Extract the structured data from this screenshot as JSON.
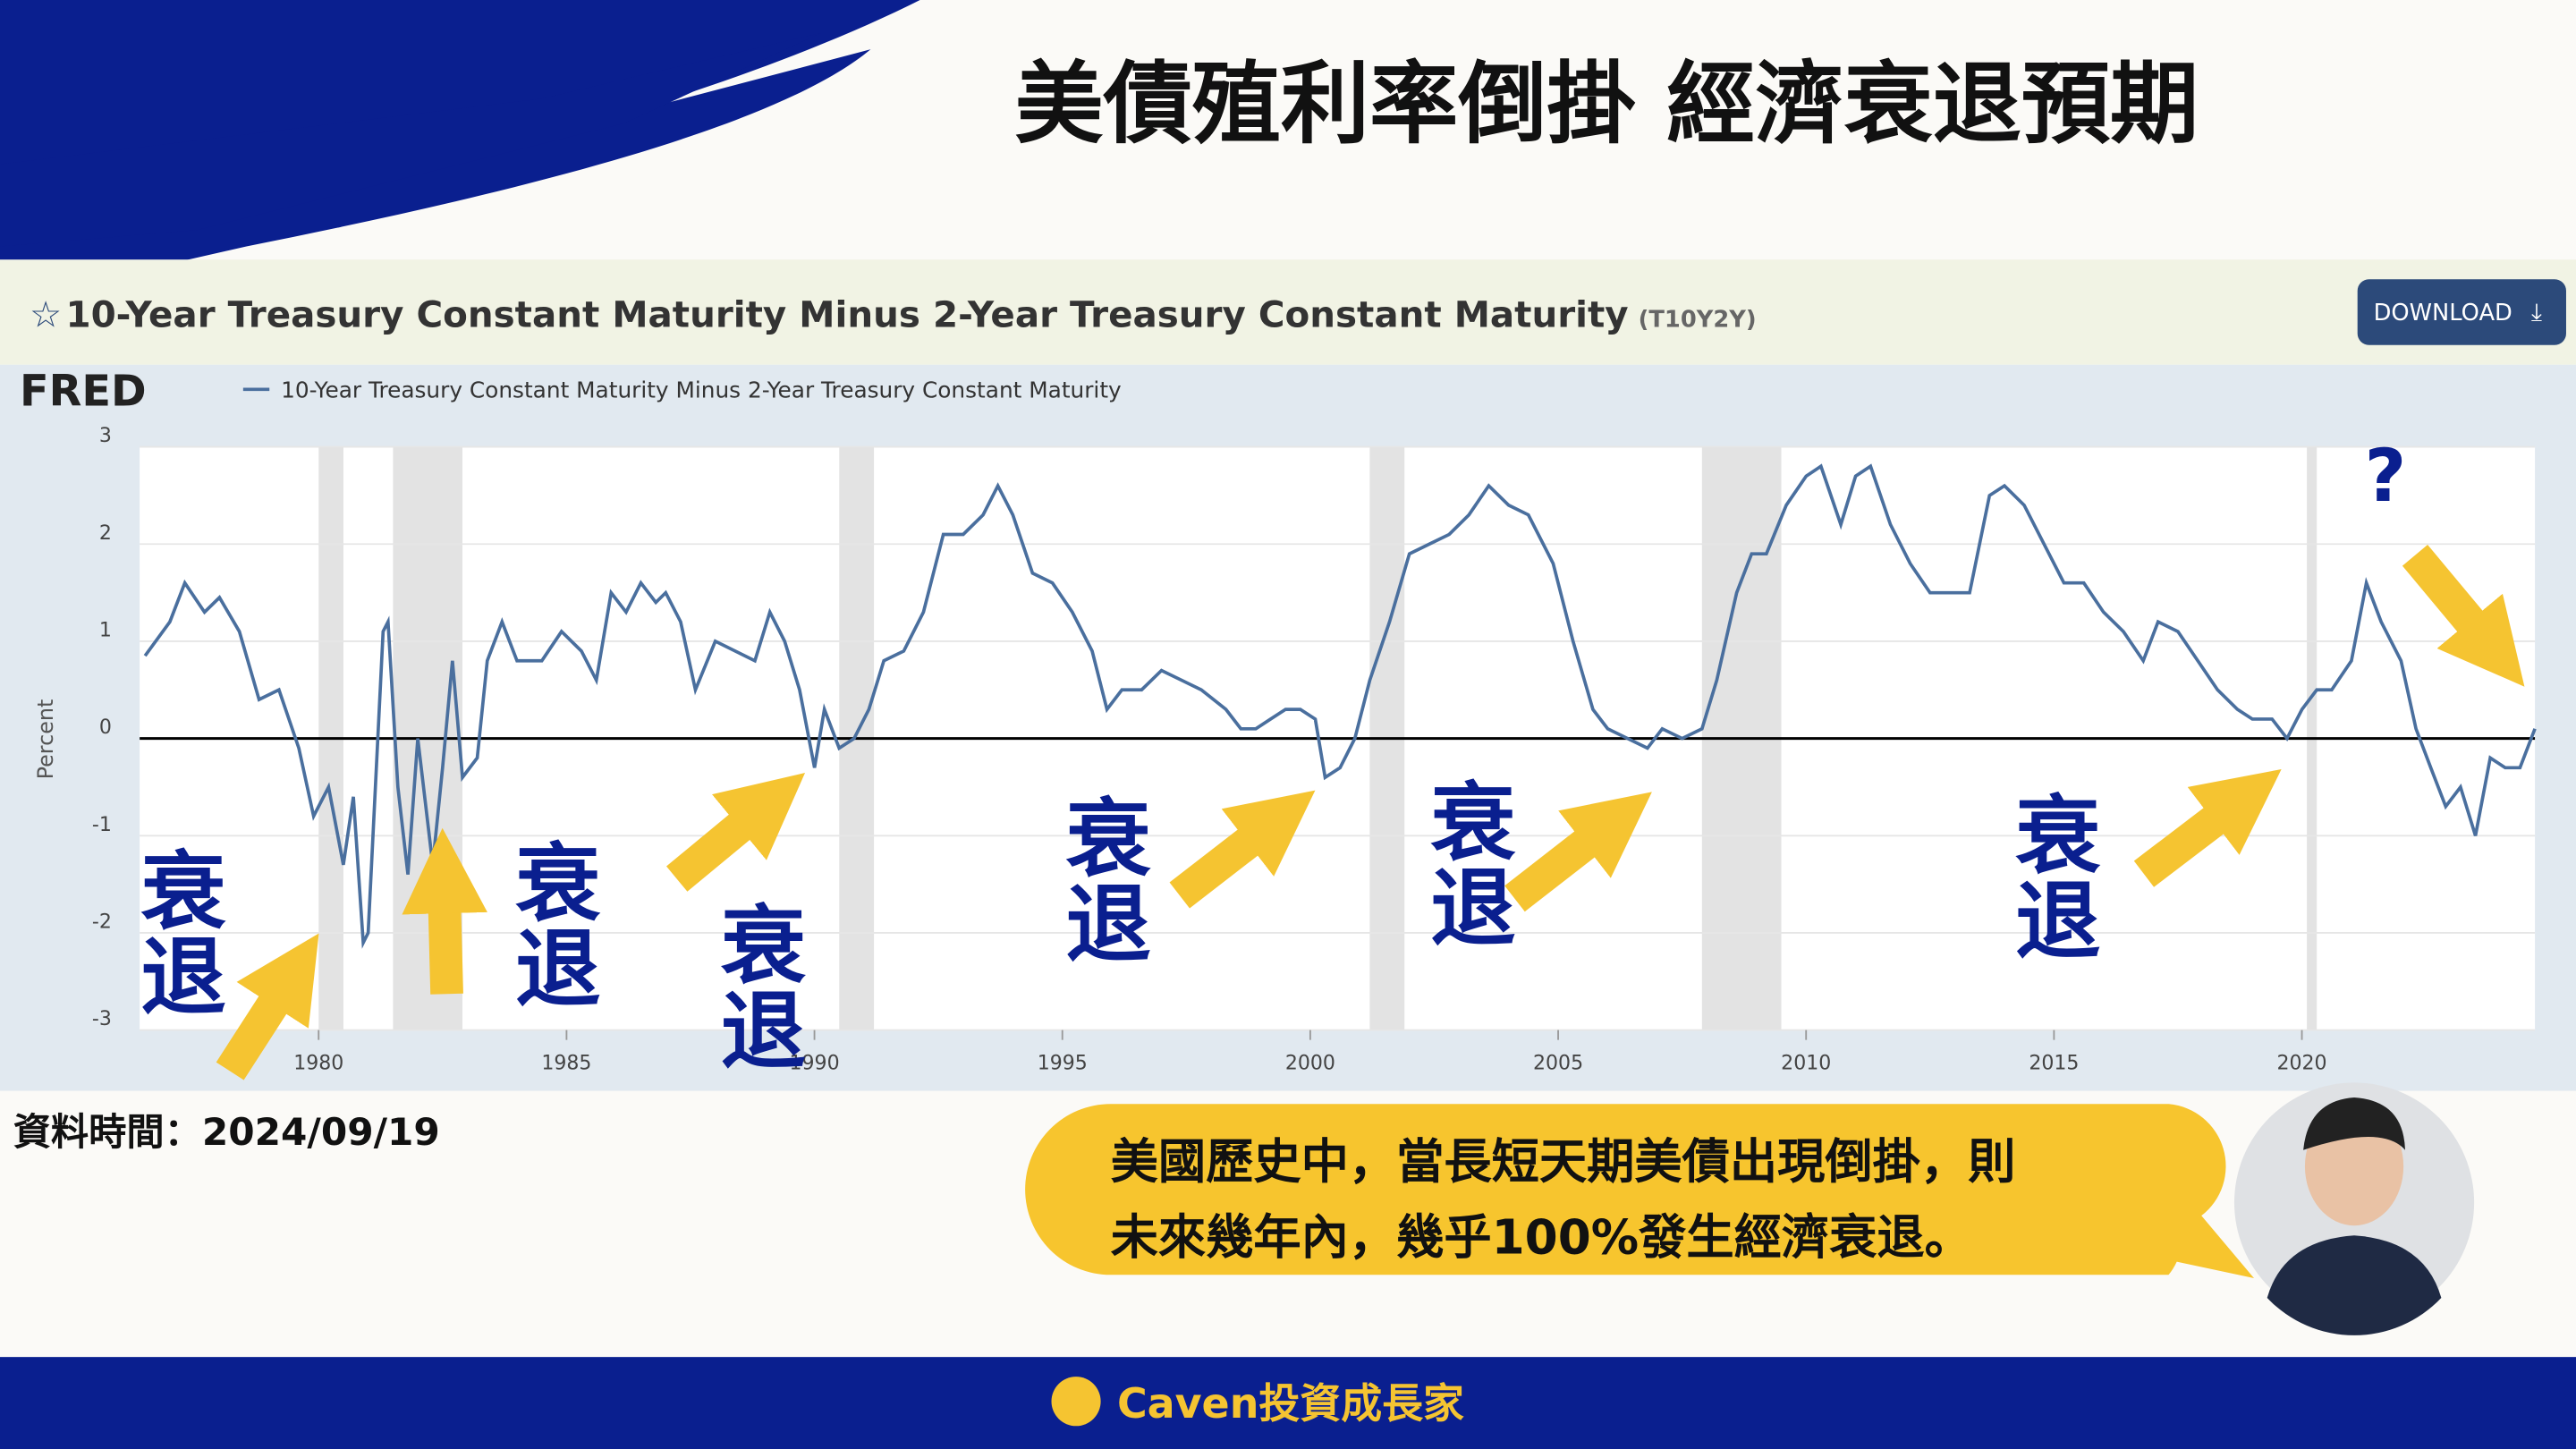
{
  "header": {
    "title": "美債殖利率倒掛  經濟衰退預期"
  },
  "fred": {
    "title": "10-Year Treasury Constant Maturity Minus 2-Year Treasury Constant Maturity",
    "code": "(T10Y2Y)",
    "download": "DOWNLOAD",
    "logo": "FRED"
  },
  "chart_data": {
    "type": "line",
    "ylabel": "Percent",
    "x": [
      1976.5,
      1977.0,
      1977.3,
      1977.7,
      1978.0,
      1978.4,
      1978.8,
      1979.2,
      1979.6,
      1979.9,
      1980.2,
      1980.5,
      1980.7,
      1980.9,
      1981.0,
      1981.3,
      1981.4,
      1981.6,
      1981.8,
      1982.0,
      1982.3,
      1982.5,
      1982.7,
      1982.9,
      1983.2,
      1983.4,
      1983.7,
      1984.0,
      1984.5,
      1984.9,
      1985.3,
      1985.6,
      1985.9,
      1986.2,
      1986.5,
      1986.8,
      1987.0,
      1987.3,
      1987.6,
      1988.0,
      1988.4,
      1988.8,
      1989.1,
      1989.4,
      1989.7,
      1990.0,
      1990.2,
      1990.5,
      1990.8,
      1991.1,
      1991.4,
      1991.8,
      1992.2,
      1992.6,
      1993.0,
      1993.4,
      1993.7,
      1994.0,
      1994.4,
      1994.8,
      1995.2,
      1995.6,
      1995.9,
      1996.2,
      1996.6,
      1997.0,
      1997.4,
      1997.8,
      1998.3,
      1998.6,
      1998.9,
      1999.2,
      1999.5,
      1999.8,
      2000.1,
      2000.3,
      2000.6,
      2000.9,
      2001.2,
      2001.6,
      2002.0,
      2002.4,
      2002.8,
      2003.2,
      2003.6,
      2004.0,
      2004.4,
      2004.9,
      2005.3,
      2005.7,
      2006.0,
      2006.4,
      2006.8,
      2007.1,
      2007.5,
      2007.9,
      2008.2,
      2008.6,
      2008.9,
      2009.2,
      2009.6,
      2010.0,
      2010.3,
      2010.7,
      2011.0,
      2011.3,
      2011.7,
      2012.1,
      2012.5,
      2012.9,
      2013.3,
      2013.7,
      2014.0,
      2014.4,
      2014.8,
      2015.2,
      2015.6,
      2016.0,
      2016.4,
      2016.8,
      2017.1,
      2017.5,
      2017.9,
      2018.3,
      2018.7,
      2019.0,
      2019.4,
      2019.7,
      2020.0,
      2020.3,
      2020.6,
      2021.0,
      2021.3,
      2021.6,
      2022.0,
      2022.3,
      2022.6,
      2022.9,
      2023.2,
      2023.5,
      2023.8,
      2024.1,
      2024.4,
      2024.7
    ],
    "series": [
      {
        "name": "10-Year Treasury Constant Maturity Minus 2-Year Treasury Constant Maturity",
        "color": "#4a6f9e",
        "values": [
          0.85,
          1.2,
          1.6,
          1.3,
          1.45,
          1.1,
          0.4,
          0.5,
          -0.1,
          -0.8,
          -0.5,
          -1.3,
          -0.6,
          -2.1,
          -2.0,
          1.1,
          1.2,
          -0.5,
          -1.4,
          0.0,
          -1.3,
          -0.3,
          0.8,
          -0.4,
          -0.2,
          0.8,
          1.2,
          0.8,
          0.8,
          1.1,
          0.9,
          0.6,
          1.5,
          1.3,
          1.6,
          1.4,
          1.5,
          1.2,
          0.5,
          1.0,
          0.9,
          0.8,
          1.3,
          1.0,
          0.5,
          -0.3,
          0.3,
          -0.1,
          0.0,
          0.3,
          0.8,
          0.9,
          1.3,
          2.1,
          2.1,
          2.3,
          2.6,
          2.3,
          1.7,
          1.6,
          1.3,
          0.9,
          0.3,
          0.5,
          0.5,
          0.7,
          0.6,
          0.5,
          0.3,
          0.1,
          0.1,
          0.2,
          0.3,
          0.3,
          0.2,
          -0.4,
          -0.3,
          0.0,
          0.6,
          1.2,
          1.9,
          2.0,
          2.1,
          2.3,
          2.6,
          2.4,
          2.3,
          1.8,
          1.0,
          0.3,
          0.1,
          0.0,
          -0.1,
          0.1,
          0.0,
          0.1,
          0.6,
          1.5,
          1.9,
          1.9,
          2.4,
          2.7,
          2.8,
          2.2,
          2.7,
          2.8,
          2.2,
          1.8,
          1.5,
          1.5,
          1.5,
          2.5,
          2.6,
          2.4,
          2.0,
          1.6,
          1.6,
          1.3,
          1.1,
          0.8,
          1.2,
          1.1,
          0.8,
          0.5,
          0.3,
          0.2,
          0.2,
          0.0,
          0.3,
          0.5,
          0.5,
          0.8,
          1.6,
          1.2,
          0.8,
          0.1,
          -0.3,
          -0.7,
          -0.5,
          -1.0,
          -0.2,
          -0.3,
          -0.3,
          0.1
        ]
      }
    ],
    "recessions": [
      [
        1980.0,
        1980.5
      ],
      [
        1981.5,
        1982.9
      ],
      [
        1990.5,
        1991.2
      ],
      [
        2001.2,
        2001.9
      ],
      [
        2007.9,
        2009.5
      ],
      [
        2020.1,
        2020.3
      ]
    ],
    "xlim": [
      1976.39,
      2024.7
    ],
    "ylim": [
      -3,
      3
    ],
    "xticks": [
      1980,
      1985,
      1990,
      1995,
      2000,
      2005,
      2010,
      2015,
      2020
    ],
    "yticks": [
      -3,
      -2,
      -1,
      0,
      1,
      2,
      3
    ],
    "grid": true,
    "annotations": [
      "衰退",
      "衰退",
      "衰退",
      "衰退",
      "衰退",
      "衰退",
      "?"
    ]
  },
  "date_note": "資料時間：2024/09/19",
  "bubble": {
    "lines": [
      "美國歷史中，當長短天期美債出現倒掛，則",
      "未來幾年內，幾乎100%發生經濟衰退。"
    ]
  },
  "footer": {
    "brand": "Caven投資成長家"
  }
}
